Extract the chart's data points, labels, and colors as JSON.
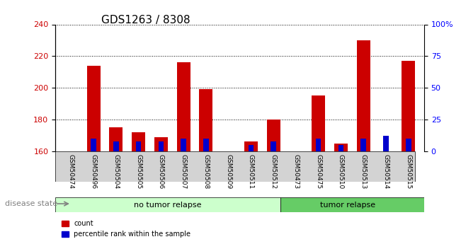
{
  "title": "GDS1263 / 8308",
  "samples": [
    "GSM50474",
    "GSM50496",
    "GSM50504",
    "GSM50505",
    "GSM50506",
    "GSM50507",
    "GSM50508",
    "GSM50509",
    "GSM50511",
    "GSM50512",
    "GSM50473",
    "GSM50475",
    "GSM50510",
    "GSM50513",
    "GSM50514",
    "GSM50515"
  ],
  "count_values": [
    160,
    214,
    175,
    172,
    169,
    216,
    199,
    160,
    166,
    180,
    160,
    195,
    165,
    230,
    160,
    217
  ],
  "percentile_values": [
    0,
    10,
    8,
    8,
    8,
    10,
    10,
    0,
    5,
    8,
    0,
    10,
    5,
    10,
    12,
    10
  ],
  "groups": [
    {
      "label": "no tumor relapse",
      "start": 0,
      "end": 10,
      "color": "#CCFFCC"
    },
    {
      "label": "tumor relapse",
      "start": 10,
      "end": 16,
      "color": "#66CC66"
    }
  ],
  "ymin": 160,
  "ymax": 240,
  "yticks": [
    160,
    180,
    200,
    220,
    240
  ],
  "y2min": 0,
  "y2max": 100,
  "y2ticks": [
    0,
    25,
    50,
    75,
    100
  ],
  "y2ticklabels": [
    "0",
    "25",
    "50",
    "75",
    "100%"
  ],
  "bar_width": 0.6,
  "red_color": "#CC0000",
  "blue_color": "#0000CC",
  "disease_label": "disease state",
  "legend_count": "count",
  "legend_pct": "percentile rank within the sample",
  "label_area_color": "#D3D3D3",
  "no_tumor_bg": "#CCFFCC",
  "tumor_bg": "#66CC66"
}
